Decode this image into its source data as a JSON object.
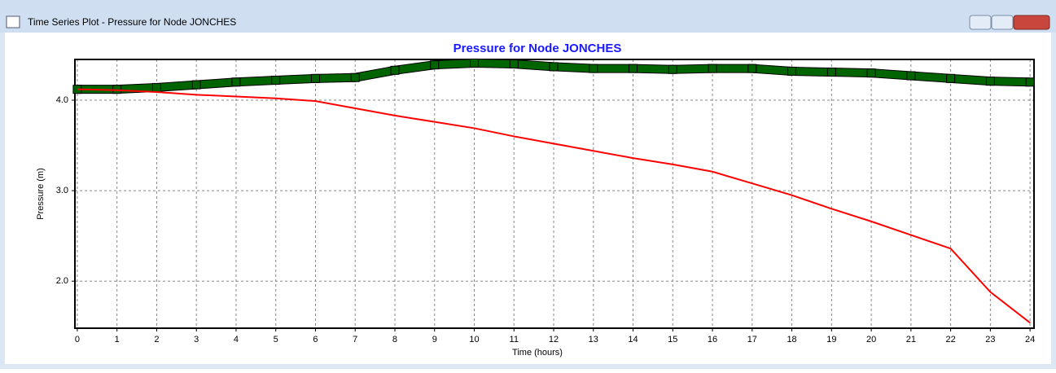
{
  "window": {
    "title": "Time Series Plot - Pressure for Node JONCHES"
  },
  "chart_data": {
    "type": "line",
    "title": "Pressure for Node JONCHES",
    "x_label": "Time (hours)",
    "y_label": "Pressure (m)",
    "x": [
      0,
      1,
      2,
      3,
      4,
      5,
      6,
      7,
      8,
      9,
      10,
      11,
      12,
      13,
      14,
      15,
      16,
      17,
      18,
      19,
      20,
      21,
      22,
      23,
      24
    ],
    "series": [
      {
        "color": "#006400",
        "marker": "square",
        "values": [
          4.12,
          4.12,
          4.14,
          4.17,
          4.2,
          4.22,
          4.24,
          4.25,
          4.33,
          4.39,
          4.41,
          4.4,
          4.37,
          4.35,
          4.35,
          4.34,
          4.35,
          4.35,
          4.32,
          4.31,
          4.3,
          4.27,
          4.24,
          4.21,
          4.2
        ]
      },
      {
        "color": "#ff0000",
        "values": [
          4.12,
          4.11,
          4.09,
          4.06,
          4.04,
          4.02,
          3.99,
          3.91,
          3.83,
          3.76,
          3.69,
          3.6,
          3.52,
          3.44,
          3.36,
          3.29,
          3.21,
          3.08,
          2.95,
          2.8,
          2.66,
          2.51,
          2.36,
          1.88,
          1.54
        ]
      }
    ],
    "xlim": [
      -0.06,
      24.1
    ],
    "ylim": [
      1.48,
      4.45
    ],
    "xticks": [
      0,
      1,
      2,
      3,
      4,
      5,
      6,
      7,
      8,
      9,
      10,
      11,
      12,
      13,
      14,
      15,
      16,
      17,
      18,
      19,
      20,
      21,
      22,
      23,
      24
    ],
    "yticks": [
      {
        "value": 2,
        "label": "2.0"
      },
      {
        "value": 3,
        "label": "3.0"
      },
      {
        "value": 4,
        "label": "4.0"
      }
    ],
    "grid": true
  }
}
